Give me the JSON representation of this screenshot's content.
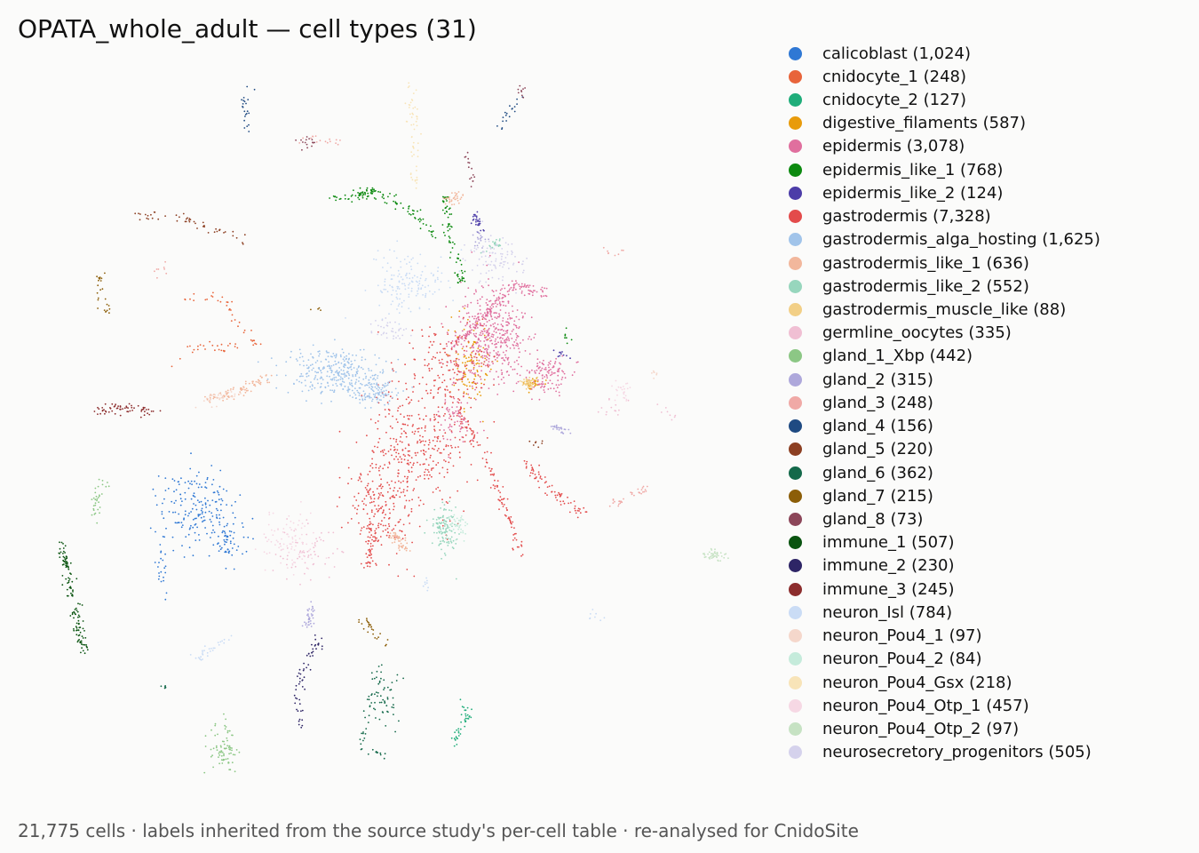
{
  "title": "OPATA_whole_adult — cell types (31)",
  "footnote": "21,775 cells · labels inherited from the source study's per-cell table · re-analysed for CnidoSite",
  "chart_data": {
    "type": "scatter",
    "title": "OPATA_whole_adult — cell types (31)",
    "xlabel": "",
    "ylabel": "",
    "grid": false,
    "axes_visible": false,
    "legend_position": "right",
    "series": [
      {
        "label": "calicoblast (1,024)",
        "name": "calicoblast",
        "count": 1024,
        "color": "#2f78d4"
      },
      {
        "label": "cnidocyte_1 (248)",
        "name": "cnidocyte_1",
        "count": 248,
        "color": "#e8643a"
      },
      {
        "label": "cnidocyte_2 (127)",
        "name": "cnidocyte_2",
        "count": 127,
        "color": "#1fad7a"
      },
      {
        "label": "digestive_filaments (587)",
        "name": "digestive_filaments",
        "count": 587,
        "color": "#e89b0b"
      },
      {
        "label": "epidermis (3,078)",
        "name": "epidermis",
        "count": 3078,
        "color": "#e06f9e"
      },
      {
        "label": "epidermis_like_1 (768)",
        "name": "epidermis_like_1",
        "count": 768,
        "color": "#0d8a10"
      },
      {
        "label": "epidermis_like_2 (124)",
        "name": "epidermis_like_2",
        "count": 124,
        "color": "#4c3da8"
      },
      {
        "label": "gastrodermis (7,328)",
        "name": "gastrodermis",
        "count": 7328,
        "color": "#e34b4b"
      },
      {
        "label": "gastrodermis_alga_hosting (1,625)",
        "name": "gastrodermis_alga_hosting",
        "count": 1625,
        "color": "#a1c4ea"
      },
      {
        "label": "gastrodermis_like_1 (636)",
        "name": "gastrodermis_like_1",
        "count": 636,
        "color": "#f2b79c"
      },
      {
        "label": "gastrodermis_like_2 (552)",
        "name": "gastrodermis_like_2",
        "count": 552,
        "color": "#97d6bd"
      },
      {
        "label": "gastrodermis_muscle_like (88)",
        "name": "gastrodermis_muscle_like",
        "count": 88,
        "color": "#f2cf86"
      },
      {
        "label": "germline_oocytes (335)",
        "name": "germline_oocytes",
        "count": 335,
        "color": "#f0bfd3"
      },
      {
        "label": "gland_1_Xbp (442)",
        "name": "gland_1_Xbp",
        "count": 442,
        "color": "#8cc785"
      },
      {
        "label": "gland_2 (315)",
        "name": "gland_2",
        "count": 315,
        "color": "#aea8db"
      },
      {
        "label": "gland_3 (248)",
        "name": "gland_3",
        "count": 248,
        "color": "#f0a9a6"
      },
      {
        "label": "gland_4 (156)",
        "name": "gland_4",
        "count": 156,
        "color": "#1f4a82"
      },
      {
        "label": "gland_5 (220)",
        "name": "gland_5",
        "count": 220,
        "color": "#8c3f22"
      },
      {
        "label": "gland_6 (362)",
        "name": "gland_6",
        "count": 362,
        "color": "#14694a"
      },
      {
        "label": "gland_7 (215)",
        "name": "gland_7",
        "count": 215,
        "color": "#8c5e08"
      },
      {
        "label": "gland_8 (73)",
        "name": "gland_8",
        "count": 73,
        "color": "#8c4659"
      },
      {
        "label": "immune_1 (507)",
        "name": "immune_1",
        "count": 507,
        "color": "#0a5410"
      },
      {
        "label": "immune_2 (230)",
        "name": "immune_2",
        "count": 230,
        "color": "#2e2566"
      },
      {
        "label": "immune_3 (245)",
        "name": "immune_3",
        "count": 245,
        "color": "#8c2d2d"
      },
      {
        "label": "neuron_Isl (784)",
        "name": "neuron_Isl",
        "count": 784,
        "color": "#cadcf5"
      },
      {
        "label": "neuron_Pou4_1 (97)",
        "name": "neuron_Pou4_1",
        "count": 97,
        "color": "#f5d7cb"
      },
      {
        "label": "neuron_Pou4_2 (84)",
        "name": "neuron_Pou4_2",
        "count": 84,
        "color": "#c5ebdb"
      },
      {
        "label": "neuron_Pou4_Gsx (218)",
        "name": "neuron_Pou4_Gsx",
        "count": 218,
        "color": "#f8e4b8"
      },
      {
        "label": "neuron_Pou4_Otp_1 (457)",
        "name": "neuron_Pou4_Otp_1",
        "count": 457,
        "color": "#f6d8e4"
      },
      {
        "label": "neuron_Pou4_Otp_2 (97)",
        "name": "neuron_Pou4_Otp_2",
        "count": 97,
        "color": "#c6e2c3"
      },
      {
        "label": "neurosecretory_progenitors (505)",
        "name": "neurosecretory_progenitors",
        "count": 505,
        "color": "#d5d2ec"
      }
    ]
  }
}
